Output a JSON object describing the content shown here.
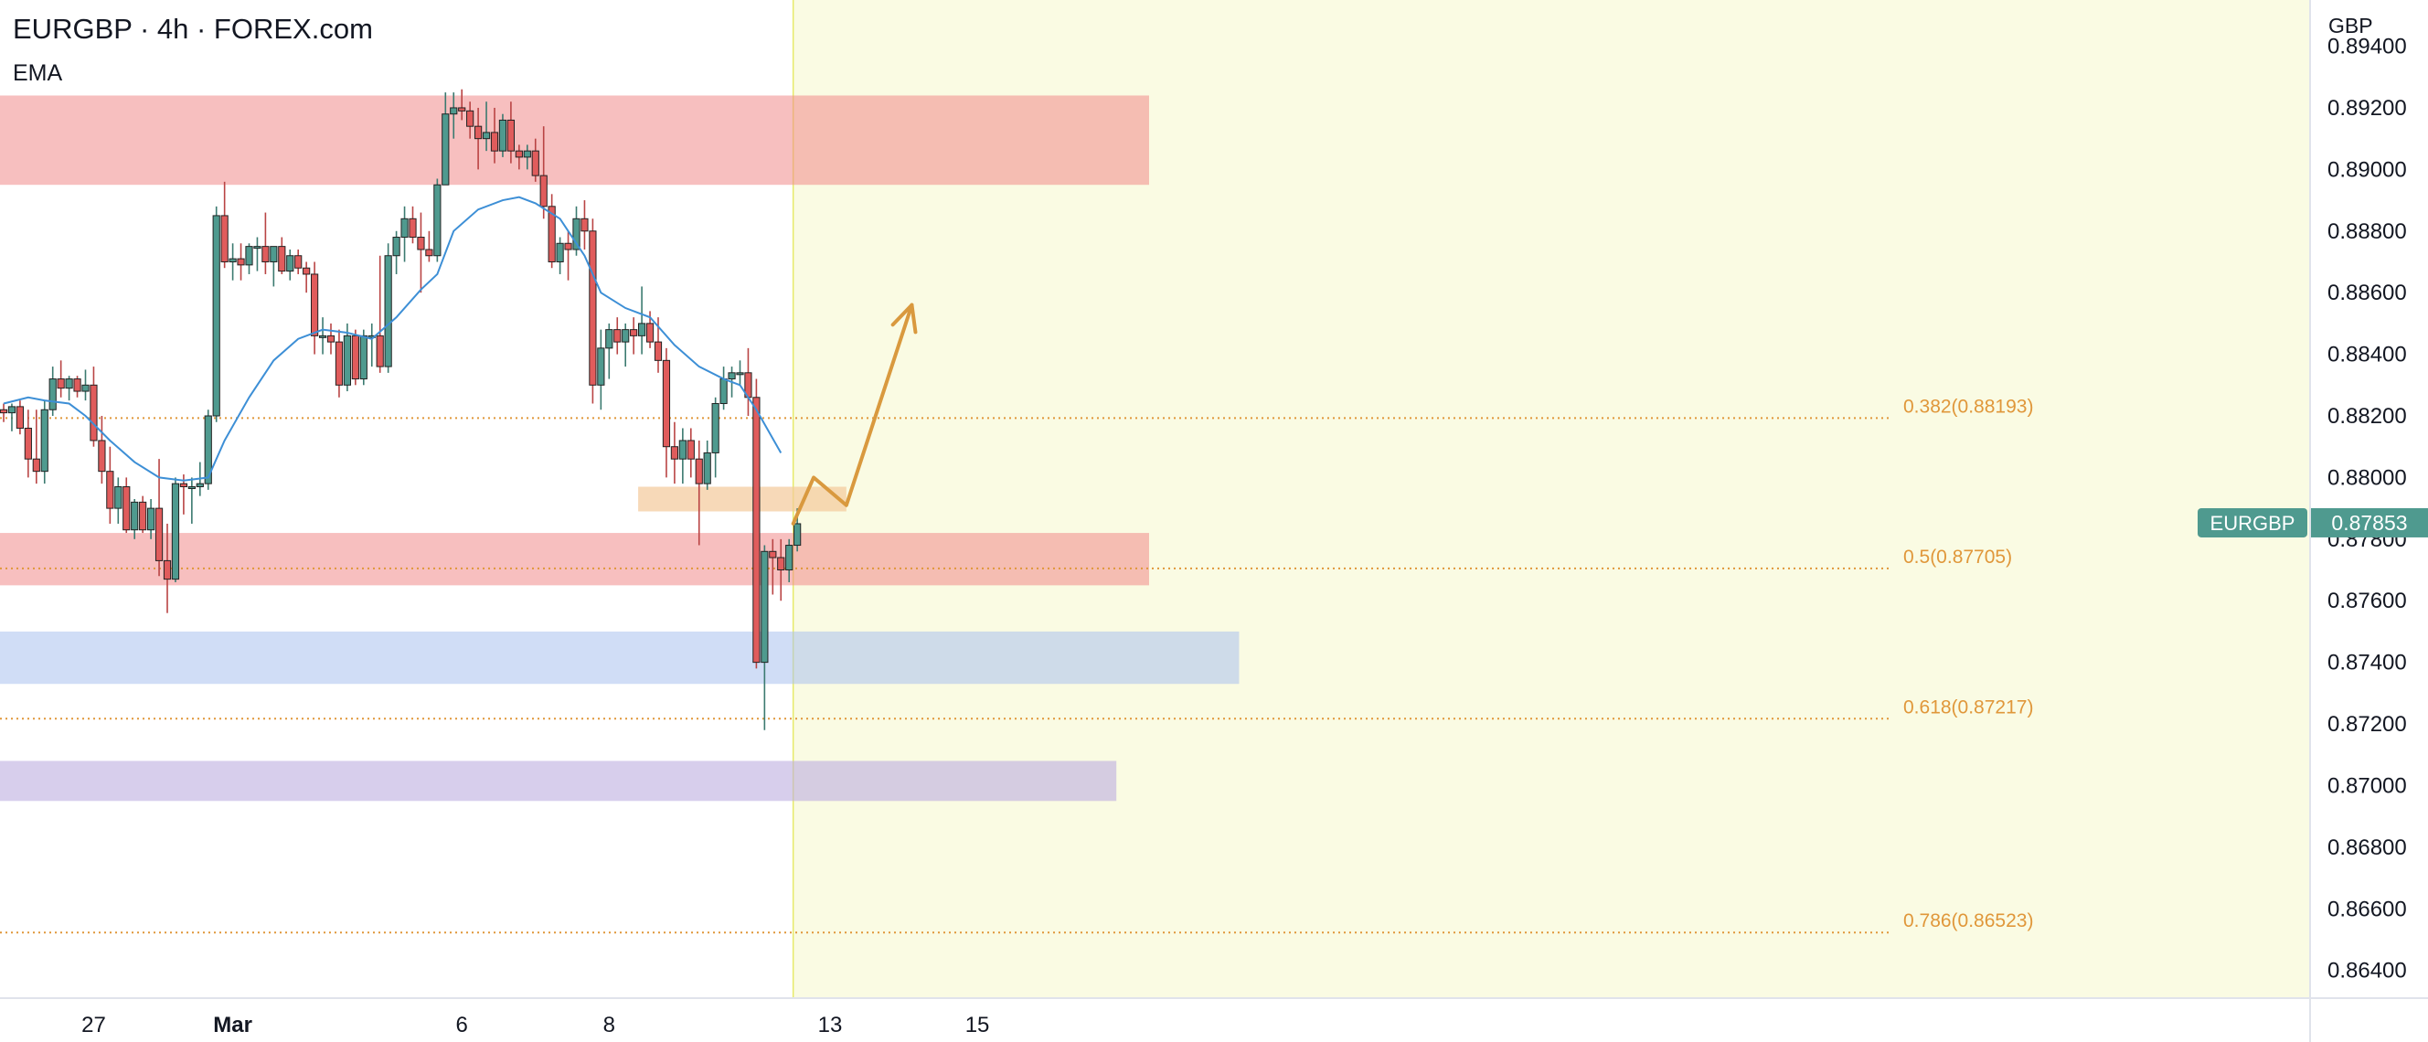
{
  "header": {
    "title": "EURGBP · 4h · FOREX.com",
    "indicator": "EMA"
  },
  "price_axis": {
    "currency": "GBP"
  },
  "last_price": {
    "symbol": "EURGBP",
    "value": "0.87853"
  },
  "colors": {
    "up": "#4f9a8f",
    "down": "#e05c5c",
    "ema": "#3d8fd6",
    "fib": "#e0973a",
    "last_badge": "#4f9a8f",
    "forecast_bg": "#fafbe3",
    "arrow": "#d9993e"
  },
  "chart_data": {
    "type": "candlestick",
    "symbol": "EURGBP",
    "timeframe": "4h",
    "ylim": [
      0.8631,
      0.8955
    ],
    "y_ticks": [
      "0.89400",
      "0.89200",
      "0.89000",
      "0.88800",
      "0.88600",
      "0.88400",
      "0.88200",
      "0.88000",
      "0.87800",
      "0.87600",
      "0.87400",
      "0.87200",
      "0.87000",
      "0.86800",
      "0.86600",
      "0.86400"
    ],
    "x_ticks": [
      {
        "label": "27",
        "bar": 11
      },
      {
        "label": "Mar",
        "bar": 28
      },
      {
        "label": "6",
        "bar": 56
      },
      {
        "label": "8",
        "bar": 74
      },
      {
        "label": "13",
        "bar": 101
      },
      {
        "label": "15",
        "bar": 119
      }
    ],
    "candles": [
      [
        0.8822,
        0.8824,
        0.8818,
        0.8821
      ],
      [
        0.8821,
        0.8824,
        0.8815,
        0.8823
      ],
      [
        0.8823,
        0.8825,
        0.8814,
        0.8816
      ],
      [
        0.8816,
        0.8822,
        0.88,
        0.8806
      ],
      [
        0.8806,
        0.8822,
        0.8798,
        0.8802
      ],
      [
        0.8802,
        0.8825,
        0.8798,
        0.8822
      ],
      [
        0.8822,
        0.8836,
        0.882,
        0.8832
      ],
      [
        0.8832,
        0.8838,
        0.8826,
        0.8829
      ],
      [
        0.8829,
        0.8833,
        0.8825,
        0.8832
      ],
      [
        0.8832,
        0.8833,
        0.8826,
        0.8828
      ],
      [
        0.8828,
        0.8835,
        0.8825,
        0.883
      ],
      [
        0.883,
        0.8836,
        0.881,
        0.8812
      ],
      [
        0.8812,
        0.882,
        0.8798,
        0.8802
      ],
      [
        0.8802,
        0.881,
        0.8785,
        0.879
      ],
      [
        0.879,
        0.88,
        0.8785,
        0.8797
      ],
      [
        0.8797,
        0.88,
        0.8782,
        0.8783
      ],
      [
        0.8783,
        0.8793,
        0.878,
        0.8792
      ],
      [
        0.8792,
        0.8794,
        0.8782,
        0.8783
      ],
      [
        0.8783,
        0.8793,
        0.878,
        0.879
      ],
      [
        0.879,
        0.8806,
        0.8768,
        0.8773
      ],
      [
        0.8773,
        0.8785,
        0.8756,
        0.8767
      ],
      [
        0.8767,
        0.88,
        0.8766,
        0.8798
      ],
      [
        0.8798,
        0.8801,
        0.8788,
        0.8797
      ],
      [
        0.8797,
        0.88,
        0.8785,
        0.8797
      ],
      [
        0.8797,
        0.8805,
        0.8794,
        0.8798
      ],
      [
        0.8798,
        0.8822,
        0.8796,
        0.882
      ],
      [
        0.882,
        0.8888,
        0.8818,
        0.8885
      ],
      [
        0.8885,
        0.8896,
        0.8868,
        0.887
      ],
      [
        0.887,
        0.8876,
        0.8864,
        0.8871
      ],
      [
        0.8871,
        0.8876,
        0.8864,
        0.8869
      ],
      [
        0.8869,
        0.8876,
        0.8866,
        0.8875
      ],
      [
        0.8875,
        0.8878,
        0.8867,
        0.8875
      ],
      [
        0.8875,
        0.8886,
        0.8866,
        0.887
      ],
      [
        0.887,
        0.8874,
        0.8862,
        0.8875
      ],
      [
        0.8875,
        0.8878,
        0.8866,
        0.8867
      ],
      [
        0.8867,
        0.8874,
        0.8864,
        0.8872
      ],
      [
        0.8872,
        0.8874,
        0.8866,
        0.8868
      ],
      [
        0.8868,
        0.887,
        0.886,
        0.8866
      ],
      [
        0.8866,
        0.887,
        0.884,
        0.8846
      ],
      [
        0.8846,
        0.8852,
        0.884,
        0.8846
      ],
      [
        0.8846,
        0.885,
        0.884,
        0.8844
      ],
      [
        0.8844,
        0.8848,
        0.8826,
        0.883
      ],
      [
        0.883,
        0.885,
        0.8828,
        0.8846
      ],
      [
        0.8846,
        0.8848,
        0.883,
        0.8832
      ],
      [
        0.8832,
        0.8848,
        0.883,
        0.8846
      ],
      [
        0.8846,
        0.885,
        0.8836,
        0.8846
      ],
      [
        0.8846,
        0.8872,
        0.8834,
        0.8836
      ],
      [
        0.8836,
        0.8876,
        0.8834,
        0.8872
      ],
      [
        0.8872,
        0.888,
        0.8866,
        0.8878
      ],
      [
        0.8878,
        0.8888,
        0.887,
        0.8884
      ],
      [
        0.8884,
        0.8888,
        0.8876,
        0.8878
      ],
      [
        0.8878,
        0.8886,
        0.886,
        0.8874
      ],
      [
        0.8874,
        0.888,
        0.887,
        0.8872
      ],
      [
        0.8872,
        0.8897,
        0.887,
        0.8895
      ],
      [
        0.8895,
        0.8925,
        0.8895,
        0.8918
      ],
      [
        0.8918,
        0.8925,
        0.891,
        0.892
      ],
      [
        0.892,
        0.8926,
        0.8916,
        0.8919
      ],
      [
        0.8919,
        0.8922,
        0.891,
        0.8914
      ],
      [
        0.8914,
        0.892,
        0.89,
        0.891
      ],
      [
        0.891,
        0.8922,
        0.8906,
        0.8912
      ],
      [
        0.8912,
        0.892,
        0.8902,
        0.8906
      ],
      [
        0.8906,
        0.8918,
        0.8904,
        0.8916
      ],
      [
        0.8916,
        0.8922,
        0.8902,
        0.8906
      ],
      [
        0.8906,
        0.8908,
        0.89,
        0.8904
      ],
      [
        0.8904,
        0.8908,
        0.89,
        0.8906
      ],
      [
        0.8906,
        0.891,
        0.8896,
        0.8898
      ],
      [
        0.8898,
        0.8914,
        0.8884,
        0.8888
      ],
      [
        0.8888,
        0.8892,
        0.8868,
        0.887
      ],
      [
        0.887,
        0.8878,
        0.8866,
        0.8876
      ],
      [
        0.8876,
        0.888,
        0.8864,
        0.8874
      ],
      [
        0.8874,
        0.8888,
        0.8872,
        0.8884
      ],
      [
        0.8884,
        0.889,
        0.8874,
        0.888
      ],
      [
        0.888,
        0.8884,
        0.8824,
        0.883
      ],
      [
        0.883,
        0.8848,
        0.8822,
        0.8842
      ],
      [
        0.8842,
        0.885,
        0.8832,
        0.8848
      ],
      [
        0.8848,
        0.8852,
        0.884,
        0.8844
      ],
      [
        0.8844,
        0.885,
        0.8836,
        0.8848
      ],
      [
        0.8848,
        0.8852,
        0.884,
        0.8846
      ],
      [
        0.8846,
        0.8862,
        0.884,
        0.885
      ],
      [
        0.885,
        0.8854,
        0.8842,
        0.8844
      ],
      [
        0.8844,
        0.8852,
        0.8834,
        0.8838
      ],
      [
        0.8838,
        0.8842,
        0.88,
        0.881
      ],
      [
        0.881,
        0.8818,
        0.8798,
        0.8806
      ],
      [
        0.8806,
        0.8816,
        0.8798,
        0.8812
      ],
      [
        0.8812,
        0.8816,
        0.88,
        0.8806
      ],
      [
        0.8806,
        0.8812,
        0.8778,
        0.8798
      ],
      [
        0.8798,
        0.8812,
        0.8796,
        0.8808
      ],
      [
        0.8808,
        0.8826,
        0.88,
        0.8824
      ],
      [
        0.8824,
        0.8836,
        0.8822,
        0.8832
      ],
      [
        0.8832,
        0.8836,
        0.8826,
        0.8834
      ],
      [
        0.8834,
        0.8838,
        0.883,
        0.8834
      ],
      [
        0.8834,
        0.8842,
        0.882,
        0.8826
      ],
      [
        0.8826,
        0.8832,
        0.8738,
        0.874
      ],
      [
        0.874,
        0.8778,
        0.8718,
        0.8776
      ],
      [
        0.8776,
        0.878,
        0.8762,
        0.8774
      ],
      [
        0.8774,
        0.878,
        0.876,
        0.877
      ],
      [
        0.877,
        0.878,
        0.8766,
        0.8778
      ],
      [
        0.8778,
        0.879,
        0.8776,
        0.8785
      ]
    ],
    "ema": [
      [
        0,
        0.8824
      ],
      [
        3,
        0.8826
      ],
      [
        5,
        0.8825
      ],
      [
        8,
        0.8824
      ],
      [
        10,
        0.882
      ],
      [
        13,
        0.8812
      ],
      [
        16,
        0.8805
      ],
      [
        19,
        0.88
      ],
      [
        22,
        0.8799
      ],
      [
        25,
        0.88
      ],
      [
        27,
        0.8812
      ],
      [
        30,
        0.8826
      ],
      [
        33,
        0.8838
      ],
      [
        36,
        0.8845
      ],
      [
        39,
        0.8848
      ],
      [
        42,
        0.8847
      ],
      [
        45,
        0.8845
      ],
      [
        48,
        0.8852
      ],
      [
        51,
        0.8861
      ],
      [
        53,
        0.8866
      ],
      [
        55,
        0.888
      ],
      [
        58,
        0.8887
      ],
      [
        61,
        0.889
      ],
      [
        63,
        0.8891
      ],
      [
        65,
        0.8889
      ],
      [
        68,
        0.8884
      ],
      [
        71,
        0.8872
      ],
      [
        73,
        0.886
      ],
      [
        76,
        0.8855
      ],
      [
        79,
        0.8852
      ],
      [
        82,
        0.8843
      ],
      [
        85,
        0.8836
      ],
      [
        88,
        0.8832
      ],
      [
        90,
        0.883
      ],
      [
        92,
        0.8822
      ],
      [
        95,
        0.8808
      ]
    ],
    "zones": [
      {
        "from": 0.8895,
        "to": 0.8924,
        "bar_start": 0,
        "bar_end": 140,
        "color": "#f08a8a",
        "opacity": 0.55
      },
      {
        "from": 0.8765,
        "to": 0.8782,
        "bar_start": 0,
        "bar_end": 140,
        "color": "#f08a8a",
        "opacity": 0.55
      },
      {
        "from": 0.8733,
        "to": 0.875,
        "bar_start": 0,
        "bar_end": 151,
        "color": "#a9c1ee",
        "opacity": 0.55
      },
      {
        "from": 0.8695,
        "to": 0.8708,
        "bar_start": 0,
        "bar_end": 136,
        "color": "#bcaee0",
        "opacity": 0.6
      },
      {
        "from": 0.8789,
        "to": 0.8797,
        "bar_start": 78,
        "bar_end": 103,
        "color": "#f3c99a",
        "opacity": 0.7
      }
    ],
    "fib_levels": [
      {
        "label": "0.382(0.88193)",
        "value": 0.88193
      },
      {
        "label": "0.5(0.87705)",
        "value": 0.87705
      },
      {
        "label": "0.618(0.87217)",
        "value": 0.87217
      },
      {
        "label": "0.786(0.86523)",
        "value": 0.86523
      }
    ],
    "forecast_start_bar": 96.5,
    "forecast_path": [
      [
        96.5,
        0.8785
      ],
      [
        99,
        0.88
      ],
      [
        103,
        0.8791
      ],
      [
        111,
        0.8856
      ]
    ]
  }
}
